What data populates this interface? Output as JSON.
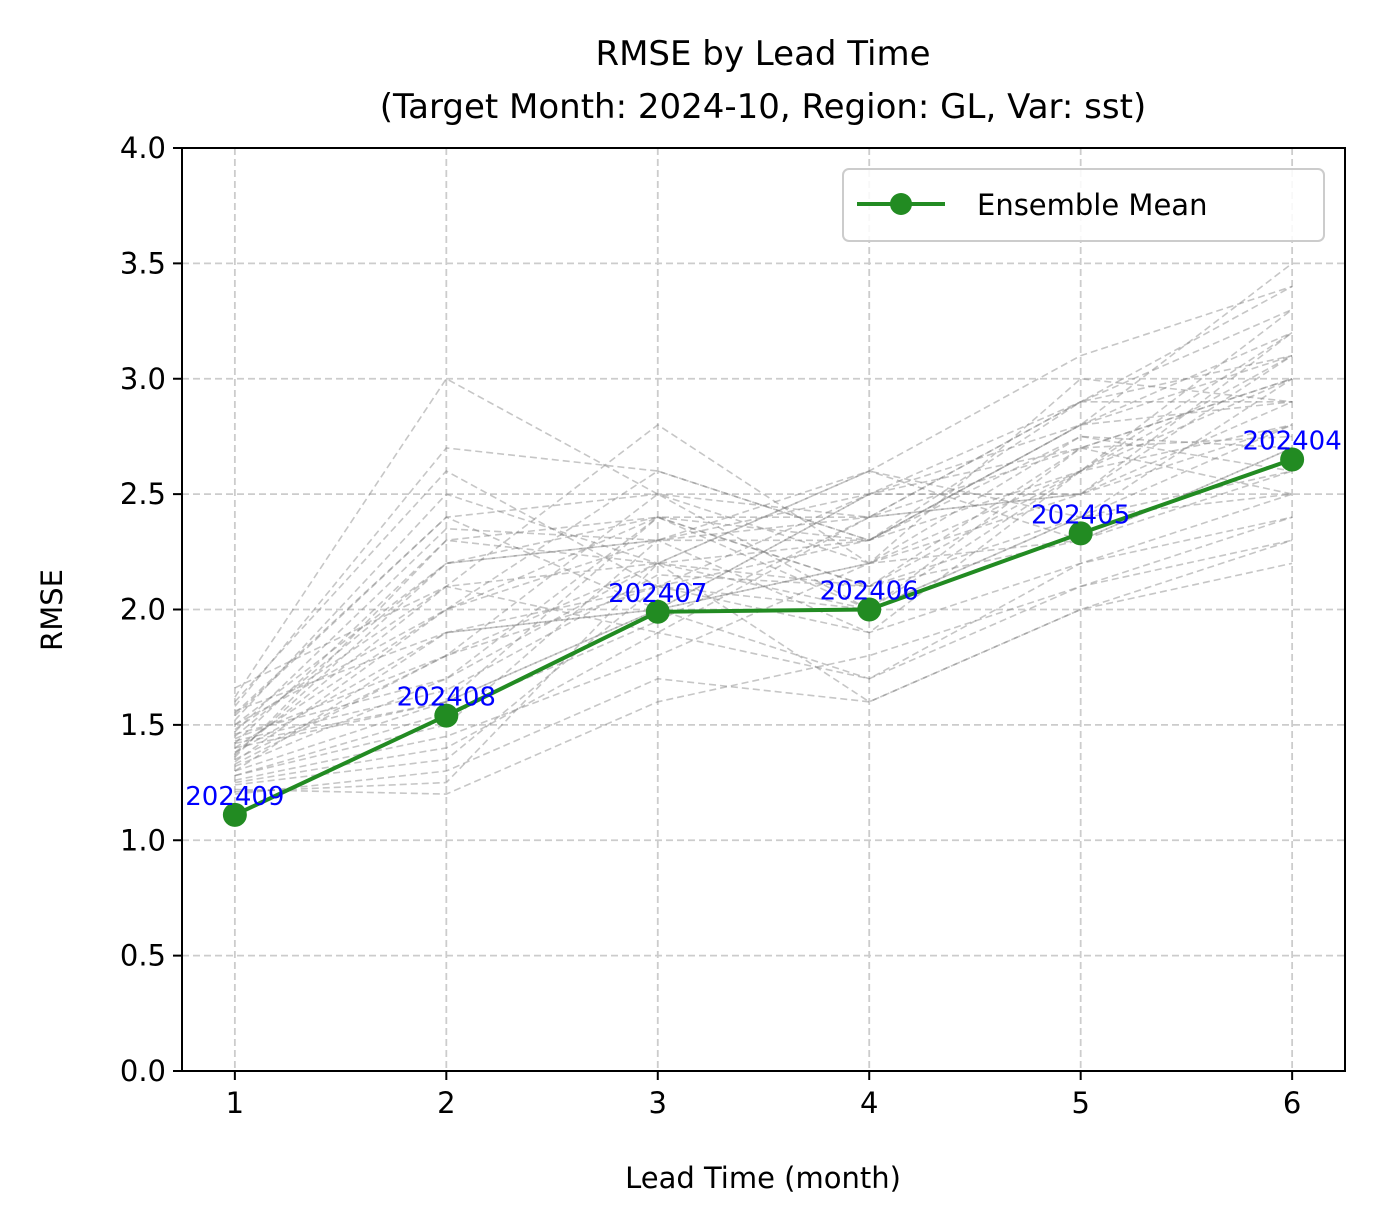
{
  "chart_data": {
    "type": "line",
    "title": "RMSE by Lead Time",
    "subtitle": "(Target Month: 2024-10, Region: GL, Var: sst)",
    "xlabel": "Lead Time (month)",
    "ylabel": "RMSE",
    "xlim": [
      0.75,
      6.25
    ],
    "ylim": [
      0.0,
      4.0
    ],
    "x_ticks": [
      1,
      2,
      3,
      4,
      5,
      6
    ],
    "x_tick_labels": [
      "1",
      "2",
      "3",
      "4",
      "5",
      "6"
    ],
    "y_ticks": [
      0.0,
      0.5,
      1.0,
      1.5,
      2.0,
      2.5,
      3.0,
      3.5,
      4.0
    ],
    "y_tick_labels": [
      "0.0",
      "0.5",
      "1.0",
      "1.5",
      "2.0",
      "2.5",
      "3.0",
      "3.5",
      "4.0"
    ],
    "grid": true,
    "legend_position": "upper right",
    "x": [
      1,
      2,
      3,
      4,
      5,
      6
    ],
    "series": [
      {
        "name": "Ensemble Mean",
        "values": [
          1.11,
          1.54,
          1.99,
          2.0,
          2.33,
          2.65
        ],
        "color": "#228b22",
        "point_labels": [
          "202409",
          "202408",
          "202407",
          "202406",
          "202405",
          "202404"
        ],
        "point_label_color": "#0000ff"
      }
    ],
    "member_series": {
      "color": "#808080",
      "style": "dashed",
      "values": [
        [
          1.42,
          2.3,
          2.2,
          2.1,
          2.6,
          3.1
        ],
        [
          1.3,
          1.6,
          2.0,
          2.2,
          2.5,
          2.9
        ],
        [
          1.5,
          2.0,
          2.4,
          2.3,
          2.8,
          3.2
        ],
        [
          1.25,
          1.4,
          1.9,
          1.7,
          2.1,
          2.4
        ],
        [
          1.6,
          2.6,
          2.1,
          2.5,
          2.9,
          3.4
        ],
        [
          1.35,
          1.8,
          2.2,
          2.0,
          2.4,
          2.8
        ],
        [
          1.45,
          2.2,
          2.3,
          2.4,
          2.7,
          3.0
        ],
        [
          1.2,
          1.3,
          1.7,
          1.6,
          2.0,
          2.2
        ],
        [
          1.55,
          2.4,
          2.5,
          2.2,
          2.6,
          3.3
        ],
        [
          1.38,
          1.9,
          2.1,
          2.3,
          2.75,
          2.7
        ],
        [
          1.28,
          1.5,
          2.3,
          1.9,
          2.2,
          2.5
        ],
        [
          1.48,
          2.1,
          1.9,
          2.4,
          2.9,
          3.1
        ],
        [
          1.32,
          1.7,
          2.4,
          2.1,
          2.4,
          3.0
        ],
        [
          1.52,
          2.5,
          2.2,
          2.6,
          2.3,
          2.6
        ],
        [
          1.4,
          1.6,
          2.0,
          2.2,
          3.0,
          2.9
        ],
        [
          1.22,
          1.2,
          1.6,
          1.8,
          2.1,
          2.3
        ],
        [
          1.58,
          2.7,
          2.6,
          2.3,
          2.8,
          3.5
        ],
        [
          1.34,
          2.0,
          2.3,
          2.5,
          2.5,
          2.8
        ],
        [
          1.44,
          1.8,
          2.1,
          1.9,
          2.6,
          3.2
        ],
        [
          1.36,
          2.3,
          2.4,
          2.0,
          2.7,
          2.5
        ],
        [
          1.26,
          1.45,
          1.8,
          2.2,
          2.3,
          2.7
        ],
        [
          1.62,
          3.0,
          2.5,
          2.4,
          2.9,
          3.3
        ],
        [
          1.46,
          1.7,
          2.2,
          2.6,
          2.4,
          2.6
        ],
        [
          1.3,
          1.9,
          2.0,
          1.7,
          2.2,
          2.4
        ],
        [
          1.5,
          2.2,
          2.3,
          2.3,
          2.8,
          3.1
        ],
        [
          1.24,
          1.35,
          2.1,
          2.0,
          2.6,
          2.8
        ],
        [
          1.54,
          2.4,
          2.0,
          2.5,
          2.7,
          3.0
        ],
        [
          1.42,
          1.6,
          2.4,
          2.1,
          2.3,
          2.7
        ],
        [
          1.38,
          2.1,
          2.2,
          2.3,
          2.9,
          2.9
        ],
        [
          1.28,
          1.55,
          1.95,
          2.4,
          2.5,
          3.2
        ],
        [
          1.66,
          2.1,
          2.8,
          2.2,
          2.75,
          2.6
        ],
        [
          1.4,
          2.0,
          2.6,
          2.3,
          2.6,
          3.0
        ],
        [
          1.33,
          1.8,
          2.5,
          2.0,
          2.4,
          2.5
        ],
        [
          1.47,
          2.35,
          2.3,
          2.6,
          3.1,
          3.4
        ],
        [
          1.21,
          1.25,
          2.2,
          1.6,
          2.0,
          2.3
        ],
        [
          1.56,
          1.9,
          2.0,
          2.5,
          2.8,
          2.9
        ],
        [
          1.37,
          2.2,
          2.4,
          2.4,
          2.5,
          3.1
        ],
        [
          1.43,
          1.65,
          2.15,
          2.1,
          2.7,
          2.75
        ]
      ]
    }
  }
}
